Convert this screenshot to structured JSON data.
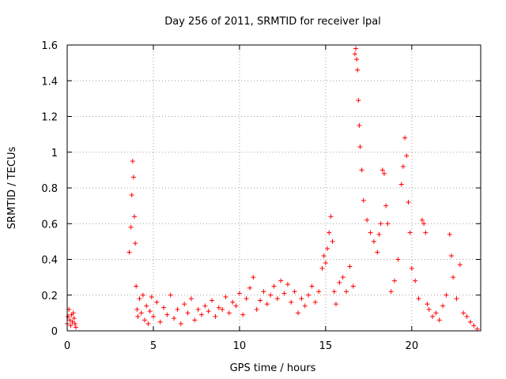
{
  "chart_data": {
    "type": "scatter",
    "title": "Day 256 of 2011, SRMTID for receiver lpal",
    "xlabel": "GPS time / hours",
    "ylabel": "SRMTID / TECUs",
    "xlim": [
      0,
      24
    ],
    "ylim": [
      0,
      1.6
    ],
    "xticks": [
      0,
      5,
      10,
      15,
      20
    ],
    "xtick_labels": [
      "0",
      "5",
      "10",
      "15",
      "20"
    ],
    "yticks": [
      0,
      0.2,
      0.4,
      0.6,
      0.8,
      1,
      1.2,
      1.4,
      1.6
    ],
    "ytick_labels": [
      "0",
      "0.2",
      "0.4",
      "0.6",
      "0.8",
      "1",
      "1.2",
      "1.4",
      "1.6"
    ],
    "grid": true,
    "marker": "plus",
    "color": "#ff0000",
    "series": [
      {
        "name": "SRMTID",
        "x": [
          0.0,
          0.05,
          0.1,
          0.15,
          0.2,
          0.25,
          0.3,
          0.35,
          0.4,
          0.45,
          0.5,
          3.6,
          3.7,
          3.75,
          3.8,
          3.85,
          3.9,
          3.95,
          4.0,
          4.05,
          4.1,
          4.2,
          4.3,
          4.4,
          4.5,
          4.6,
          4.7,
          4.8,
          4.9,
          5.0,
          5.2,
          5.4,
          5.6,
          5.8,
          6.0,
          6.2,
          6.4,
          6.6,
          6.8,
          7.0,
          7.2,
          7.4,
          7.6,
          7.8,
          8.0,
          8.2,
          8.4,
          8.6,
          8.8,
          9.0,
          9.2,
          9.4,
          9.6,
          9.8,
          10.0,
          10.2,
          10.4,
          10.6,
          10.8,
          11.0,
          11.2,
          11.4,
          11.6,
          11.8,
          12.0,
          12.2,
          12.4,
          12.6,
          12.8,
          13.0,
          13.2,
          13.4,
          13.6,
          13.8,
          14.0,
          14.2,
          14.4,
          14.6,
          14.8,
          14.9,
          15.0,
          15.1,
          15.2,
          15.3,
          15.4,
          15.5,
          15.6,
          15.8,
          16.0,
          16.2,
          16.4,
          16.6,
          16.7,
          16.75,
          16.8,
          16.85,
          16.9,
          16.95,
          17.0,
          17.1,
          17.2,
          17.4,
          17.6,
          17.8,
          18.0,
          18.1,
          18.2,
          18.3,
          18.4,
          18.5,
          18.6,
          18.8,
          19.0,
          19.2,
          19.4,
          19.5,
          19.6,
          19.7,
          19.8,
          19.9,
          20.0,
          20.2,
          20.4,
          20.6,
          20.7,
          20.8,
          20.9,
          21.0,
          21.2,
          21.4,
          21.6,
          21.8,
          22.0,
          22.2,
          22.3,
          22.4,
          22.6,
          22.8,
          23.0,
          23.2,
          23.4,
          23.6,
          23.8
        ],
        "y": [
          0.04,
          0.08,
          0.12,
          0.06,
          0.03,
          0.09,
          0.05,
          0.1,
          0.07,
          0.04,
          0.02,
          0.44,
          0.58,
          0.76,
          0.95,
          0.86,
          0.64,
          0.49,
          0.25,
          0.12,
          0.08,
          0.18,
          0.1,
          0.2,
          0.06,
          0.14,
          0.04,
          0.11,
          0.19,
          0.08,
          0.16,
          0.05,
          0.13,
          0.09,
          0.2,
          0.07,
          0.12,
          0.04,
          0.15,
          0.1,
          0.18,
          0.06,
          0.12,
          0.09,
          0.14,
          0.11,
          0.17,
          0.08,
          0.13,
          0.12,
          0.19,
          0.1,
          0.16,
          0.14,
          0.21,
          0.09,
          0.18,
          0.24,
          0.3,
          0.12,
          0.17,
          0.22,
          0.15,
          0.2,
          0.25,
          0.18,
          0.28,
          0.21,
          0.26,
          0.16,
          0.22,
          0.1,
          0.18,
          0.14,
          0.2,
          0.25,
          0.16,
          0.22,
          0.35,
          0.42,
          0.38,
          0.46,
          0.55,
          0.64,
          0.5,
          0.22,
          0.15,
          0.27,
          0.3,
          0.22,
          0.36,
          0.25,
          1.55,
          1.58,
          1.52,
          1.46,
          1.29,
          1.15,
          1.03,
          0.9,
          0.73,
          0.62,
          0.55,
          0.5,
          0.44,
          0.54,
          0.6,
          0.9,
          0.88,
          0.7,
          0.6,
          0.22,
          0.28,
          0.4,
          0.82,
          0.92,
          1.08,
          0.98,
          0.72,
          0.55,
          0.35,
          0.28,
          0.18,
          0.62,
          0.6,
          0.55,
          0.15,
          0.12,
          0.08,
          0.1,
          0.06,
          0.14,
          0.2,
          0.54,
          0.42,
          0.3,
          0.18,
          0.37,
          0.1,
          0.08,
          0.05,
          0.03,
          0.01
        ]
      }
    ]
  }
}
